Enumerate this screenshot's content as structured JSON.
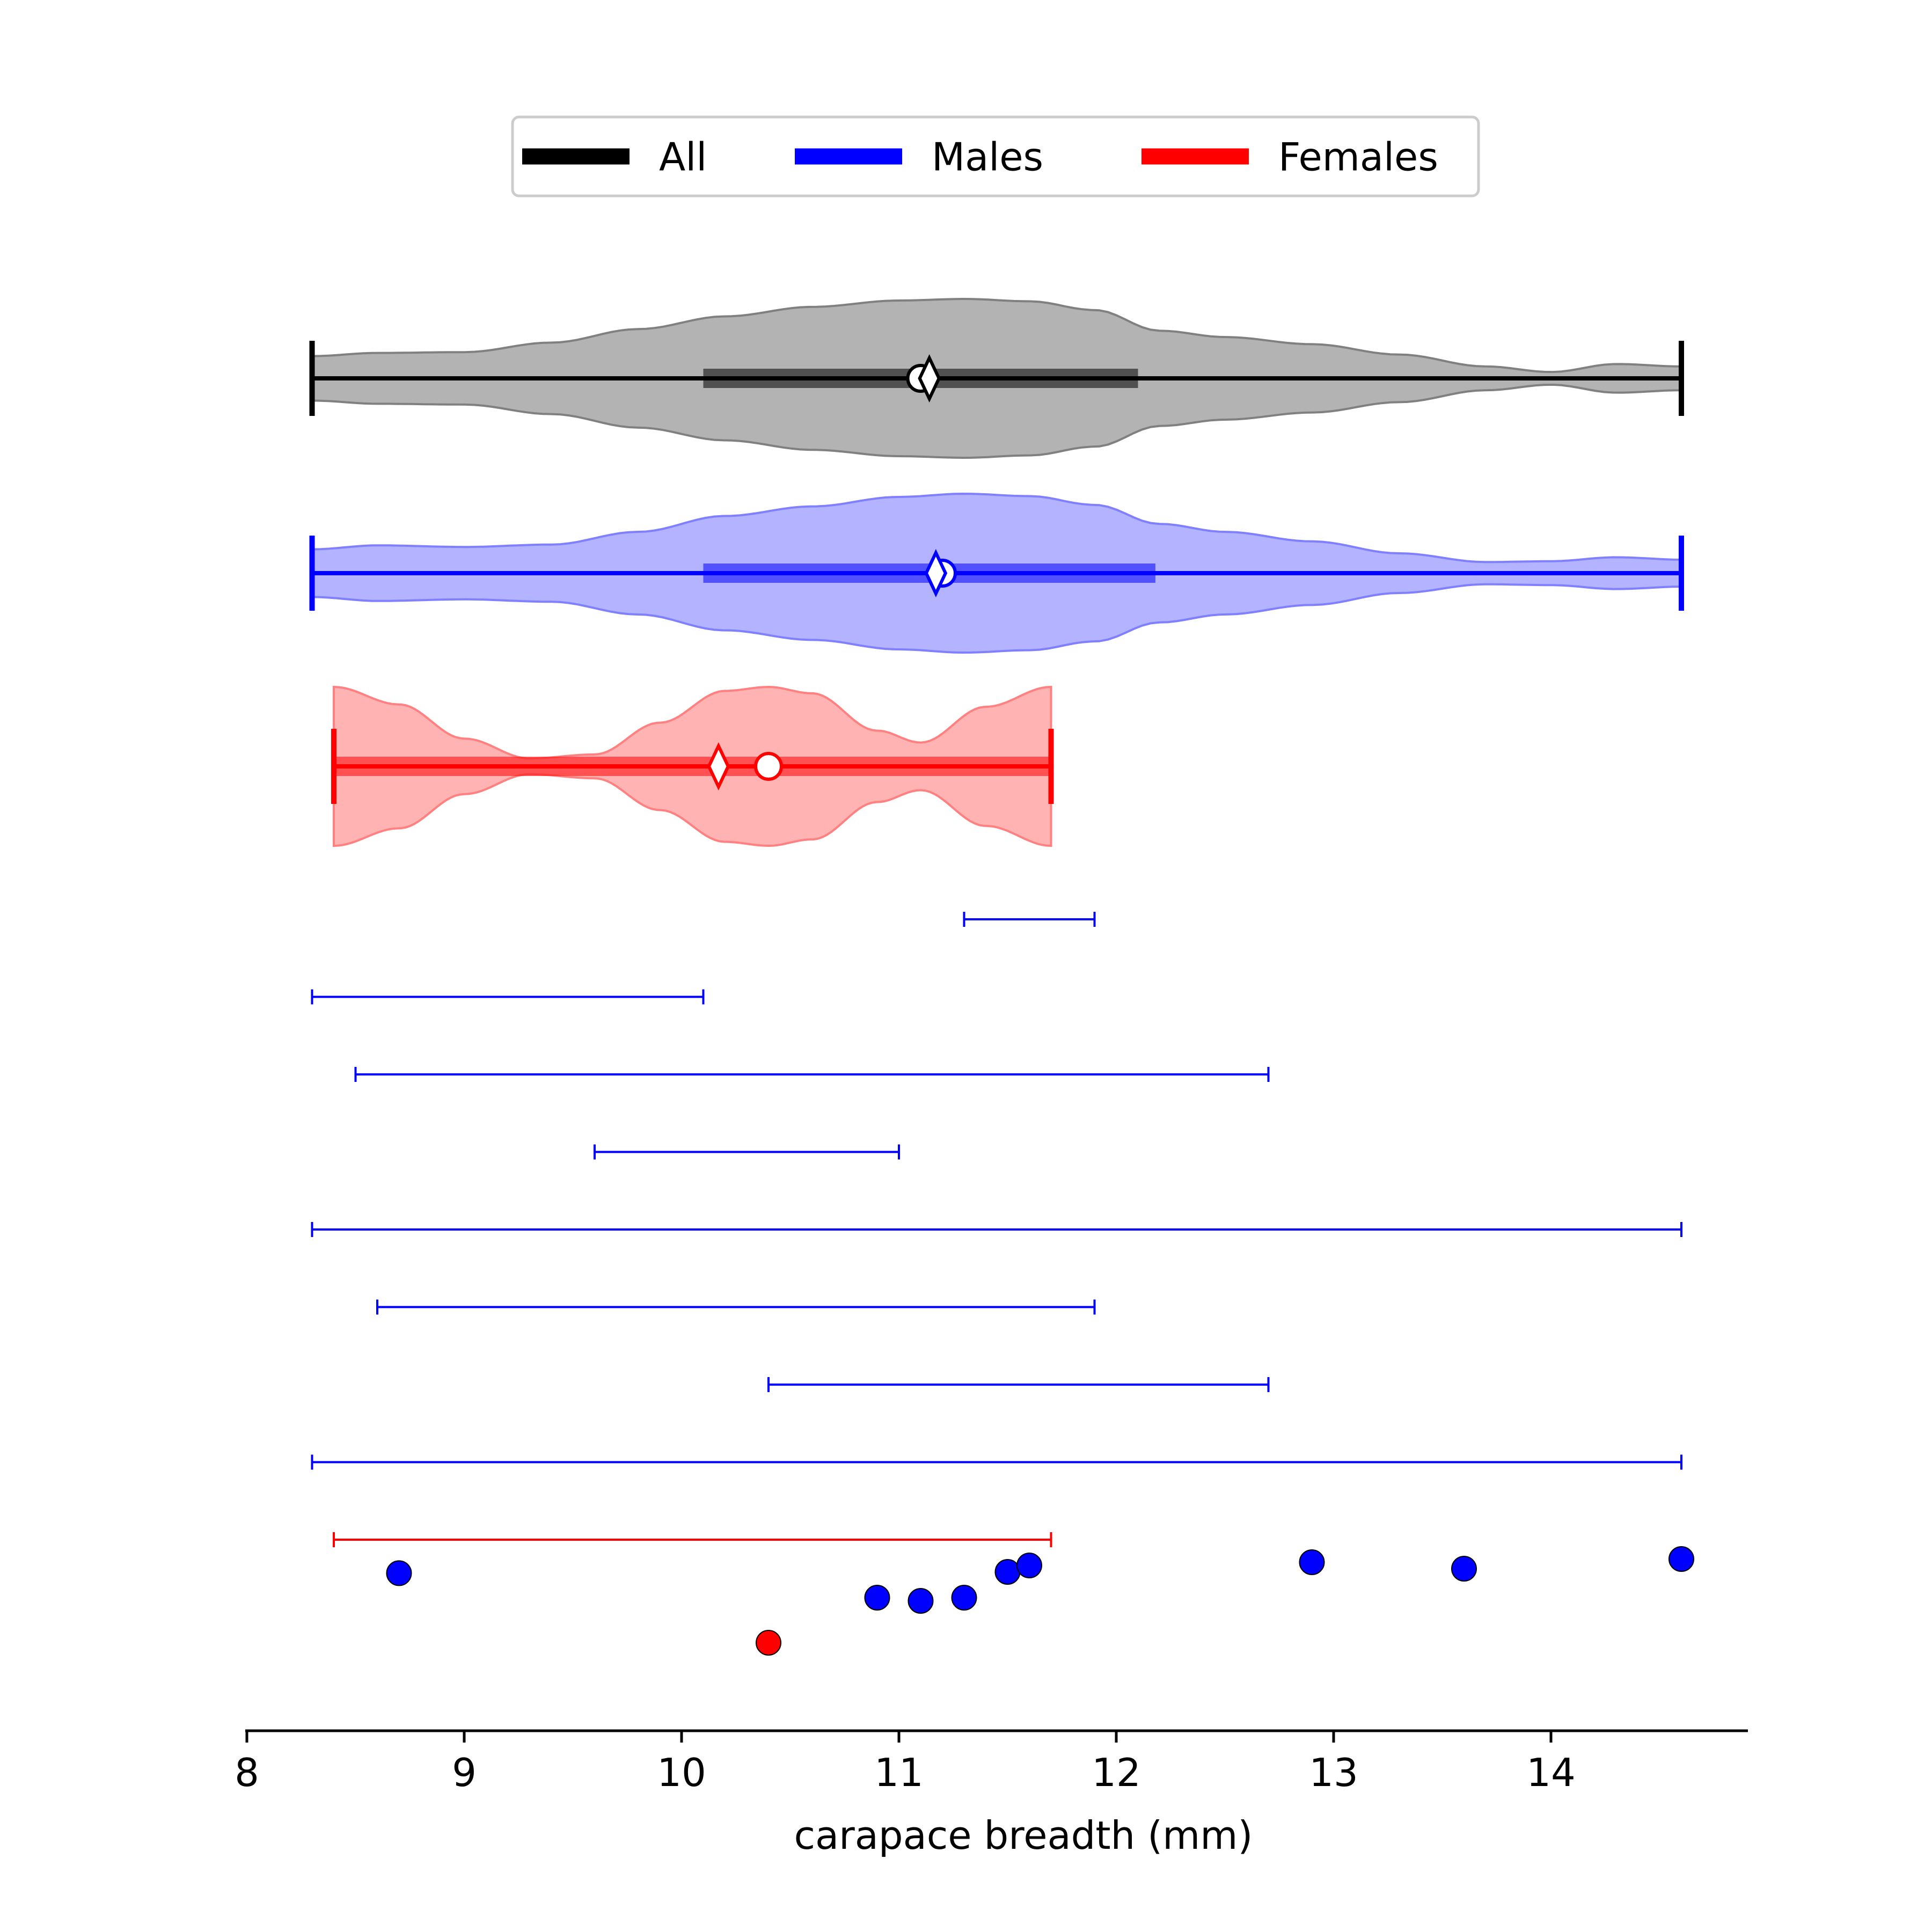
{
  "chart_data": {
    "type": "violin",
    "xlabel": "carapace breadth (mm)",
    "ylabel": "",
    "xlim": [
      8,
      14.9
    ],
    "xticks": [
      8,
      9,
      10,
      11,
      12,
      13,
      14
    ],
    "xtick_labels": [
      "8",
      "9",
      "10",
      "11",
      "12",
      "13",
      "14"
    ],
    "legend": {
      "placement": "top-center",
      "entries": [
        {
          "label": "All",
          "color": "#000000"
        },
        {
          "label": "Males",
          "color": "#0000ff"
        },
        {
          "label": "Females",
          "color": "#ff0000"
        }
      ]
    },
    "violins": [
      {
        "name": "All",
        "color": "#000000",
        "fill": "#b3b3b3",
        "outline": "#808080",
        "min": 8.3,
        "max": 14.6,
        "q1": 10.1,
        "q3": 12.1,
        "median": 11.1,
        "mean": 11.14,
        "density": {
          "x": [
            8.3,
            8.6,
            9.0,
            9.4,
            9.8,
            10.2,
            10.6,
            11.0,
            11.3,
            11.6,
            11.9,
            12.2,
            12.5,
            12.9,
            13.3,
            13.7,
            14.0,
            14.3,
            14.6
          ],
          "w": [
            0.28,
            0.32,
            0.33,
            0.45,
            0.62,
            0.78,
            0.9,
            0.98,
            1.0,
            0.97,
            0.86,
            0.6,
            0.52,
            0.43,
            0.3,
            0.15,
            0.08,
            0.18,
            0.15
          ]
        }
      },
      {
        "name": "Males",
        "color": "#0000ff",
        "fill": "#b3b3ff",
        "outline": "#8080ff",
        "min": 8.3,
        "max": 14.6,
        "q1": 10.1,
        "q3": 12.18,
        "median": 11.2,
        "mean": 11.17,
        "density": {
          "x": [
            8.3,
            8.6,
            9.0,
            9.4,
            9.8,
            10.2,
            10.6,
            11.0,
            11.3,
            11.6,
            11.9,
            12.2,
            12.5,
            12.9,
            13.3,
            13.7,
            14.0,
            14.3,
            14.6
          ],
          "w": [
            0.3,
            0.35,
            0.33,
            0.36,
            0.52,
            0.72,
            0.84,
            0.96,
            1.0,
            0.97,
            0.86,
            0.62,
            0.52,
            0.4,
            0.25,
            0.14,
            0.15,
            0.2,
            0.17
          ]
        }
      },
      {
        "name": "Females",
        "color": "#ff0000",
        "fill": "#ffb3b3",
        "outline": "#ff8080",
        "min": 8.4,
        "max": 11.7,
        "q1": 8.4,
        "q3": 11.7,
        "median": 10.4,
        "mean": 10.17,
        "density": {
          "x": [
            8.4,
            8.7,
            9.0,
            9.3,
            9.6,
            9.9,
            10.2,
            10.4,
            10.6,
            10.9,
            11.1,
            11.4,
            11.7
          ],
          "w": [
            1.0,
            0.78,
            0.35,
            0.1,
            0.15,
            0.55,
            0.95,
            1.0,
            0.92,
            0.45,
            0.3,
            0.75,
            1.0
          ]
        }
      }
    ],
    "ranges": [
      {
        "min": 11.3,
        "max": 11.9,
        "color": "#0000ff"
      },
      {
        "min": 8.3,
        "max": 10.1,
        "color": "#0000ff"
      },
      {
        "min": 8.5,
        "max": 12.7,
        "color": "#0000ff"
      },
      {
        "min": 9.6,
        "max": 11.0,
        "color": "#0000ff"
      },
      {
        "min": 8.3,
        "max": 14.6,
        "color": "#0000ff"
      },
      {
        "min": 8.6,
        "max": 11.9,
        "color": "#0000ff"
      },
      {
        "min": 10.4,
        "max": 12.7,
        "color": "#0000ff"
      },
      {
        "min": 8.3,
        "max": 14.6,
        "color": "#0000ff"
      },
      {
        "min": 8.4,
        "max": 11.7,
        "color": "#ff0000"
      }
    ],
    "points": [
      {
        "x": 8.7,
        "jitter": 0.22,
        "color": "#0000ff"
      },
      {
        "x": 10.9,
        "jitter": 0.6,
        "color": "#0000ff"
      },
      {
        "x": 11.1,
        "jitter": 0.65,
        "color": "#0000ff"
      },
      {
        "x": 11.3,
        "jitter": 0.6,
        "color": "#0000ff"
      },
      {
        "x": 11.5,
        "jitter": 0.2,
        "color": "#0000ff"
      },
      {
        "x": 11.6,
        "jitter": 0.1,
        "color": "#0000ff"
      },
      {
        "x": 12.9,
        "jitter": 0.05,
        "color": "#0000ff"
      },
      {
        "x": 13.6,
        "jitter": 0.15,
        "color": "#0000ff"
      },
      {
        "x": 14.6,
        "jitter": 0.0,
        "color": "#0000ff"
      },
      {
        "x": 10.4,
        "jitter": 1.3,
        "color": "#ff0000"
      }
    ]
  }
}
